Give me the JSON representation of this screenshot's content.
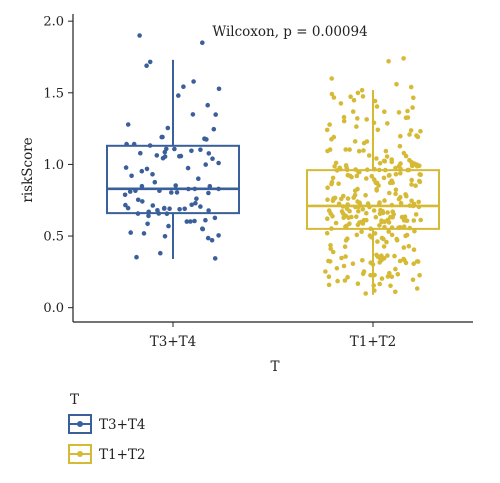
{
  "chart_data": {
    "type": "boxplot",
    "annotation": "Wilcoxon, p = 0.00094",
    "xlabel": "T",
    "ylabel": "riskScore",
    "ylim": [
      -0.1,
      2.05
    ],
    "yticks": [
      0.0,
      0.5,
      1.0,
      1.5,
      2.0
    ],
    "ytick_labels": [
      "0.0",
      "0.5",
      "1.0",
      "1.5",
      "2.0"
    ],
    "grid": false,
    "legend": {
      "title": "T",
      "position": "bottom-left"
    },
    "groups": [
      {
        "name": "T3+T4",
        "color": "#3a5f9a",
        "n_points": 95,
        "min": 0.34,
        "q1": 0.66,
        "median": 0.83,
        "q3": 1.13,
        "max": 1.73,
        "outliers": [
          1.9,
          1.85
        ],
        "dot_spread": 0.24,
        "seed": 7
      },
      {
        "name": "T1+T2",
        "color": "#d6ba36",
        "n_points": 300,
        "min": 0.09,
        "q1": 0.55,
        "median": 0.71,
        "q3": 0.96,
        "max": 1.52,
        "outliers": [
          1.74,
          1.72,
          1.6,
          1.56,
          1.54
        ],
        "dot_spread": 0.24,
        "seed": 13
      }
    ]
  }
}
